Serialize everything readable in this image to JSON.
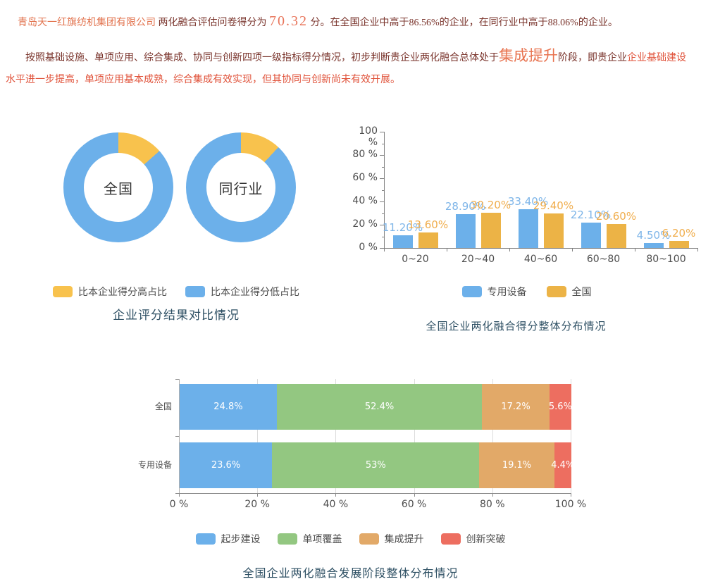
{
  "report": {
    "company": "青岛天一红旗纺机集团有限公司",
    "line1_mid": " 两化融合评估问卷得分为 ",
    "score": "70.32",
    "line1_end": " 分。在全国企业中高于86.56%的企业，在同行业中高于88.06%的企业。",
    "para2_start": "按照基础设施、单项应用、综合集成、协同与创新四项一级指标得分情况，初步判断贵企业两化融合总体处于",
    "stage": "集成提升",
    "para2_mid": "阶段，即贵企业",
    "para2_highlight": "企业基础建设",
    "para2_end": "水平进一步提高，单项应用基本成熟，综合集成有效实现，但其协同与创新尚未有效开展。"
  },
  "palette": {
    "blue": "#6cb0ea",
    "yellow": "#f8c24d",
    "orange": "#ecb346",
    "green": "#93c781",
    "tan": "#e2a968",
    "red": "#ed6e60",
    "title_navy": "#2d4f63",
    "dark_maroon_text": "#7a342c",
    "salmon_text": "#e2734e",
    "bright_red_text": "#e0523a"
  },
  "chart_data": [
    {
      "type": "pie",
      "title": "企业评分结果对比情况",
      "legend_position": "bottom",
      "donuts": [
        {
          "label": "全国",
          "slices": [
            {
              "name": "比本企业得分高占比",
              "value": 13.44,
              "color": "#f8c24d"
            },
            {
              "name": "比本企业得分低占比",
              "value": 86.56,
              "color": "#6cb0ea"
            }
          ]
        },
        {
          "label": "同行业",
          "slices": [
            {
              "name": "比本企业得分高占比",
              "value": 11.94,
              "color": "#f8c24d"
            },
            {
              "name": "比本企业得分低占比",
              "value": 88.06,
              "color": "#6cb0ea"
            }
          ]
        }
      ]
    },
    {
      "type": "bar",
      "title": "全国企业两化融合得分整体分布情况",
      "categories": [
        "0~20",
        "20~40",
        "40~60",
        "60~80",
        "80~100"
      ],
      "series": [
        {
          "name": "专用设备",
          "color": "#6cb0ea",
          "label_color": "#7eb5e8",
          "values": [
            11.2,
            28.9,
            33.4,
            22.1,
            4.5
          ],
          "labels": [
            "11.20%",
            "28.90%",
            "33.40%",
            "22.10%",
            "4.50%"
          ]
        },
        {
          "name": "全国",
          "color": "#ecb346",
          "label_color": "#f0ad4c",
          "values": [
            13.6,
            30.2,
            29.4,
            20.6,
            6.2
          ],
          "labels": [
            "13.60%",
            "30.20%",
            "29.40%",
            "20.60%",
            "6.20%"
          ]
        }
      ],
      "ylim": [
        0,
        100
      ],
      "ylabels": [
        "0 %",
        "20 %",
        "40 %",
        "60 %",
        "80 %",
        "100 %"
      ],
      "grid": false,
      "legend_position": "bottom"
    },
    {
      "type": "stacked-bar",
      "title": "全国企业两化融合发展阶段整体分布情况",
      "orientation": "horizontal",
      "categories": [
        "全国",
        "专用设备"
      ],
      "series": [
        {
          "name": "起步建设",
          "color": "#6cb0ea",
          "values": [
            24.8,
            23.6
          ],
          "labels": [
            "24.8%",
            "23.6%"
          ]
        },
        {
          "name": "单项覆盖",
          "color": "#93c781",
          "values": [
            52.4,
            53
          ],
          "labels": [
            "52.4%",
            "53%"
          ]
        },
        {
          "name": "集成提升",
          "color": "#e2a968",
          "values": [
            17.2,
            19.1
          ],
          "labels": [
            "17.2%",
            "19.1%"
          ]
        },
        {
          "name": "创新突破",
          "color": "#ed6e60",
          "values": [
            5.6,
            4.4
          ],
          "labels": [
            "5.6%",
            "4.4%"
          ]
        }
      ],
      "xlim": [
        0,
        100
      ],
      "xlabels": [
        "0 %",
        "20 %",
        "40 %",
        "60 %",
        "80 %",
        "100 %"
      ],
      "grid": true,
      "legend_position": "bottom"
    }
  ]
}
